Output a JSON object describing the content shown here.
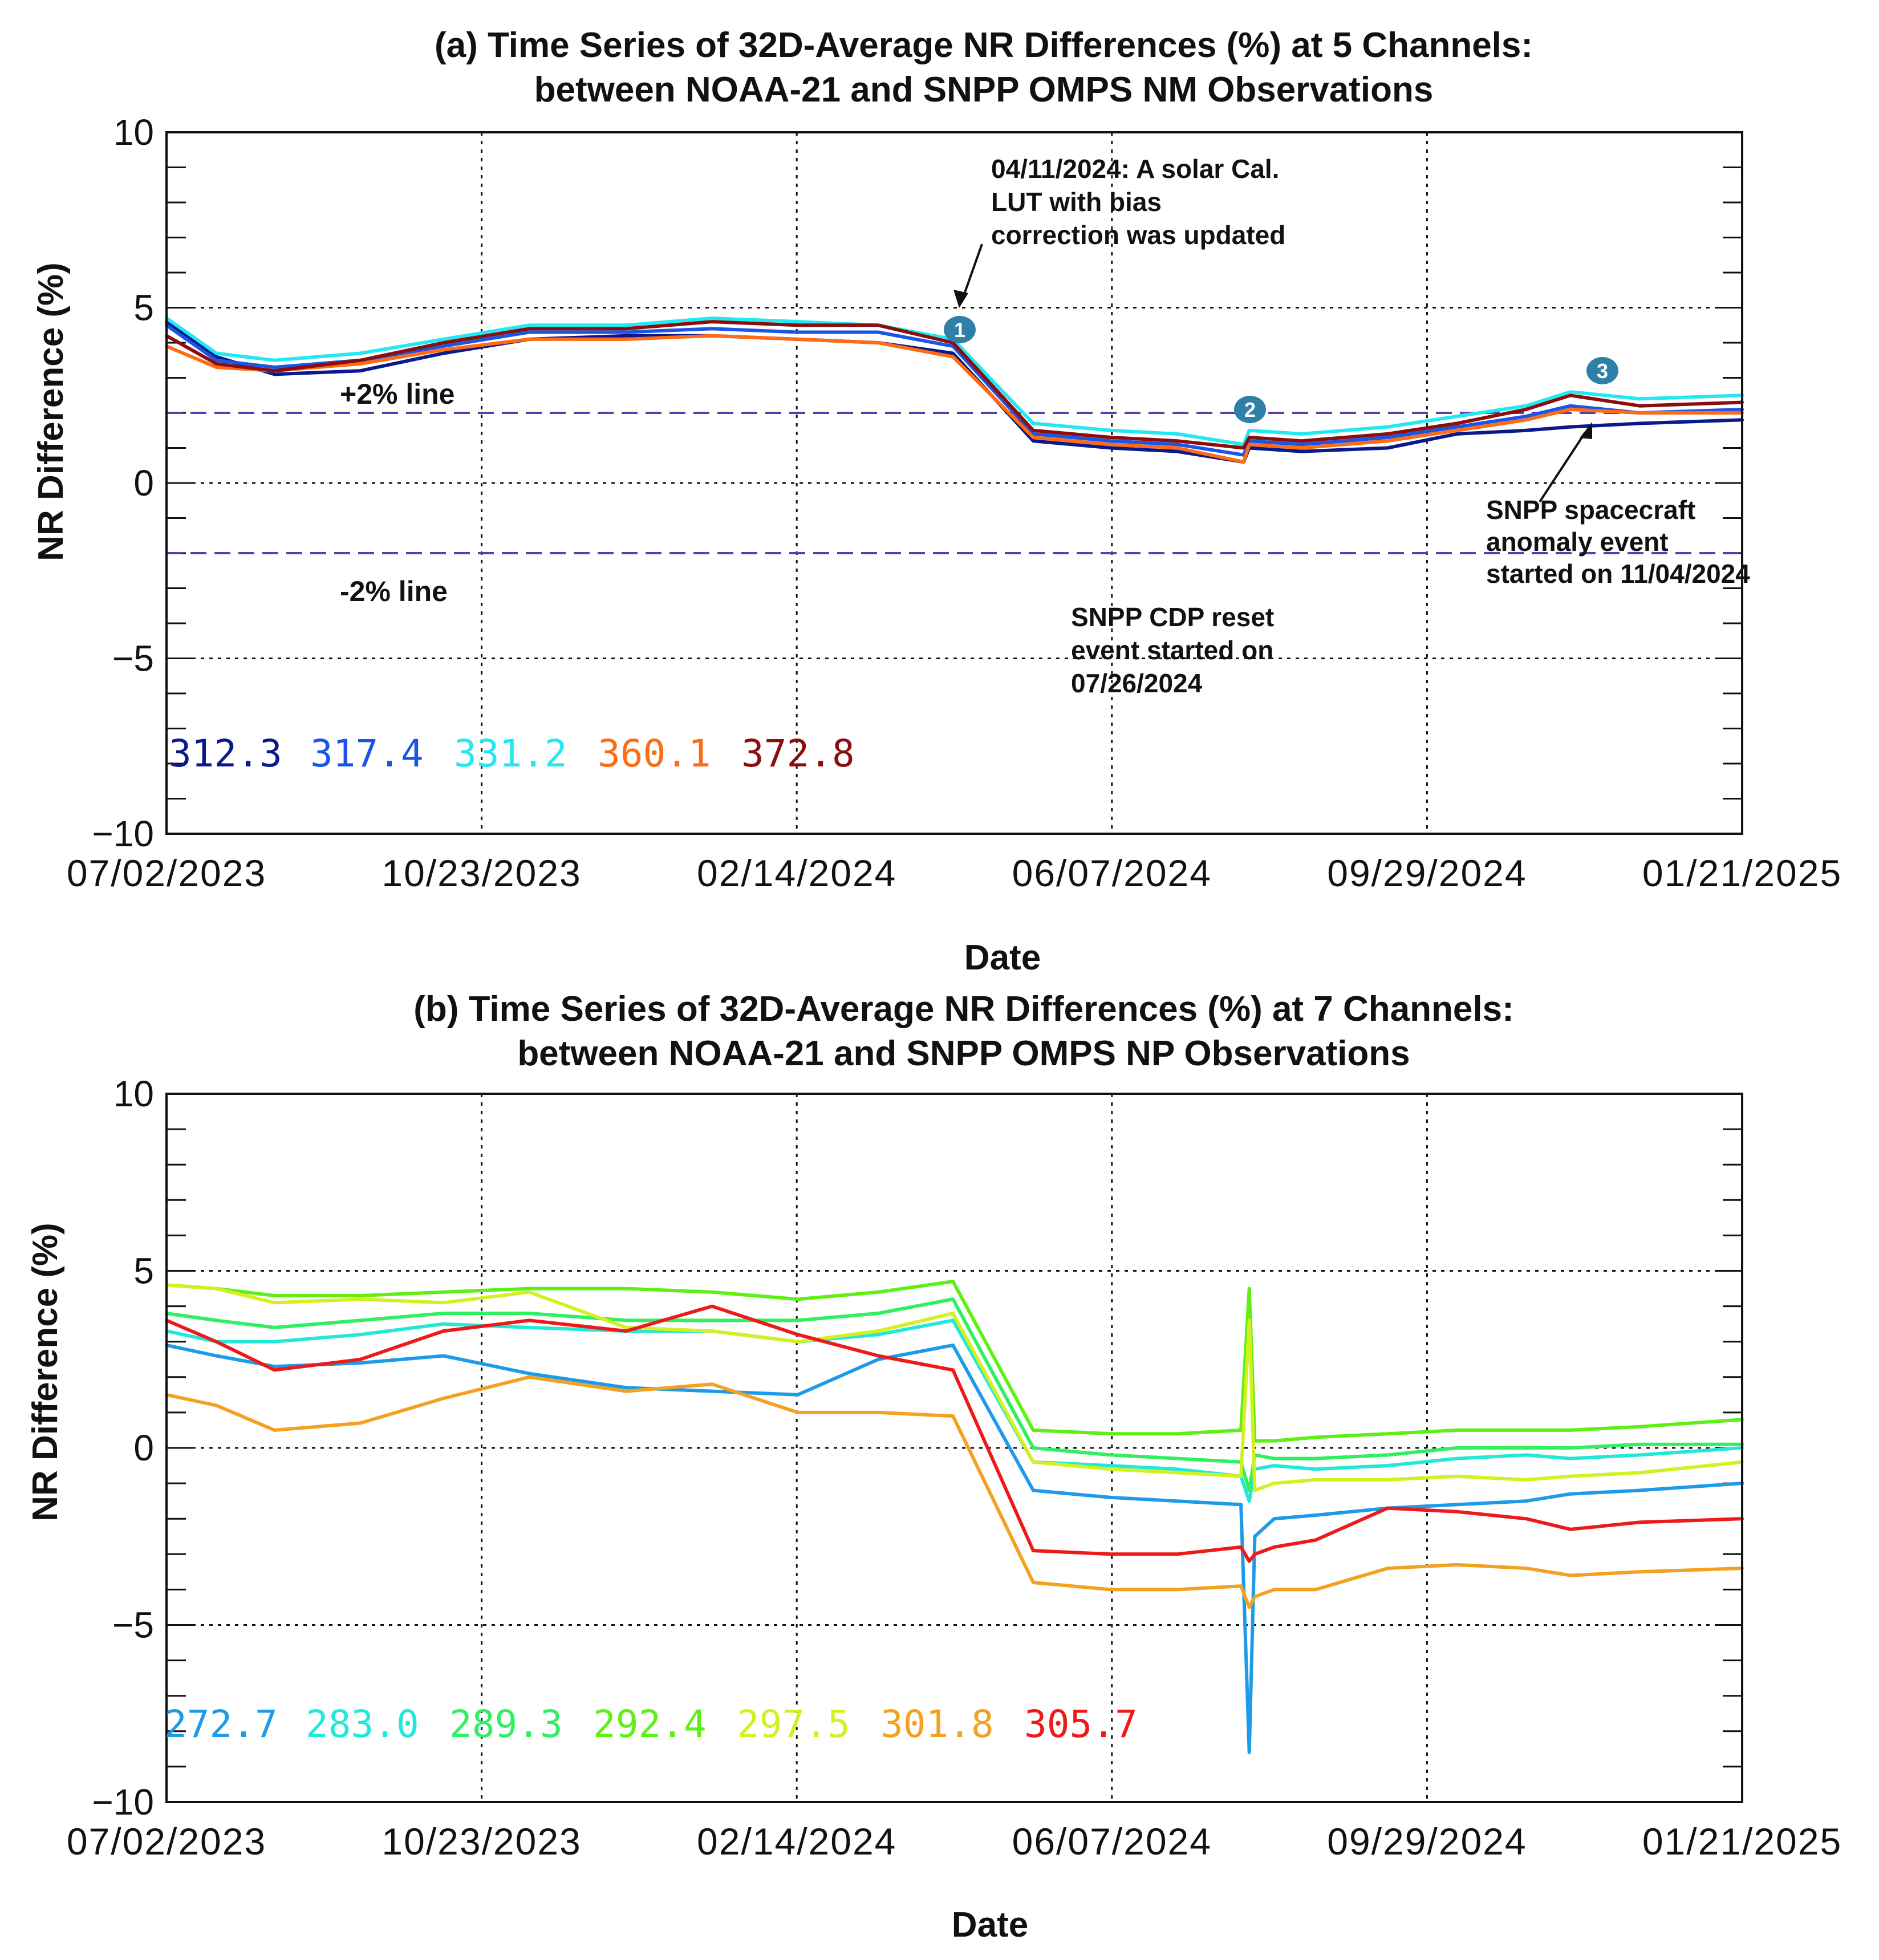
{
  "colors": {
    "nm": [
      "#0a1a8c",
      "#1a55e6",
      "#22e8f0",
      "#ff6a14",
      "#8b0e0e"
    ],
    "np": [
      "#1e9be8",
      "#22e8d8",
      "#30f060",
      "#5ef014",
      "#d4f020",
      "#f4a020",
      "#ee1a1a"
    ],
    "ref_dashed": "#5a3cb4"
  },
  "chart_data": [
    {
      "id": "a",
      "type": "line",
      "title": [
        "(a) Time Series of 32D-Average NR Differences (%) at 5 Channels:",
        "between NOAA-21 and SNPP OMPS NM Observations"
      ],
      "xlabel": "Date",
      "ylabel": "NR Difference (%)",
      "ylim": [
        -10,
        10
      ],
      "xlim": [
        "2023-07-02",
        "2025-01-21"
      ],
      "x_ticks": [
        "07/02/2023",
        "10/23/2023",
        "02/14/2024",
        "06/07/2024",
        "09/29/2024",
        "01/21/2025"
      ],
      "y_ticks": [
        "10",
        "5",
        "0",
        "−5",
        "−10"
      ],
      "grid": true,
      "reference_lines": [
        {
          "y": 2,
          "label": "+2% line"
        },
        {
          "y": -2,
          "label": "-2% line"
        }
      ],
      "annotations": [
        {
          "marker": "1",
          "date": "2024-04-11",
          "text": [
            "04/11/2024: A solar Cal.",
            "LUT with bias",
            "correction was updated"
          ]
        },
        {
          "marker": "2",
          "date": "2024-07-26",
          "text": [
            "SNPP CDP reset",
            "event started on",
            "07/26/2024"
          ]
        },
        {
          "marker": "3",
          "date": "2024-11-04",
          "text": [
            "SNPP spacecraft",
            "anomaly event",
            "started on 11/04/2024"
          ]
        }
      ],
      "x": [
        "2023-07-02",
        "2023-07-20",
        "2023-08-10",
        "2023-09-10",
        "2023-10-10",
        "2023-11-10",
        "2023-12-15",
        "2024-01-15",
        "2024-02-15",
        "2024-03-15",
        "2024-04-11",
        "2024-05-10",
        "2024-06-07",
        "2024-07-01",
        "2024-07-25",
        "2024-07-27",
        "2024-08-15",
        "2024-09-15",
        "2024-10-10",
        "2024-11-04",
        "2024-11-20",
        "2024-12-15",
        "2025-01-21"
      ],
      "series": [
        {
          "name": "312.3",
          "values": [
            4.6,
            3.6,
            3.1,
            3.2,
            3.7,
            4.1,
            4.2,
            4.2,
            4.1,
            4.0,
            3.7,
            1.2,
            1.0,
            0.9,
            0.6,
            1.0,
            0.9,
            1.0,
            1.4,
            1.5,
            1.6,
            1.7,
            1.8
          ]
        },
        {
          "name": "317.4",
          "values": [
            4.5,
            3.5,
            3.3,
            3.5,
            3.9,
            4.3,
            4.3,
            4.4,
            4.3,
            4.3,
            3.9,
            1.4,
            1.2,
            1.1,
            0.8,
            1.2,
            1.1,
            1.3,
            1.6,
            1.9,
            2.2,
            2.0,
            2.1
          ]
        },
        {
          "name": "331.2",
          "values": [
            4.7,
            3.7,
            3.5,
            3.7,
            4.1,
            4.5,
            4.5,
            4.7,
            4.6,
            4.5,
            4.1,
            1.7,
            1.5,
            1.4,
            1.1,
            1.5,
            1.4,
            1.6,
            1.9,
            2.2,
            2.6,
            2.4,
            2.5
          ]
        },
        {
          "name": "360.1",
          "values": [
            3.9,
            3.3,
            3.2,
            3.4,
            3.8,
            4.1,
            4.1,
            4.2,
            4.1,
            4.0,
            3.6,
            1.3,
            1.1,
            1.0,
            0.6,
            1.1,
            1.0,
            1.2,
            1.5,
            1.8,
            2.1,
            2.0,
            2.0
          ]
        },
        {
          "name": "372.8",
          "values": [
            4.2,
            3.4,
            3.2,
            3.5,
            4.0,
            4.4,
            4.4,
            4.6,
            4.5,
            4.5,
            4.0,
            1.5,
            1.3,
            1.2,
            1.0,
            1.3,
            1.2,
            1.4,
            1.7,
            2.1,
            2.5,
            2.2,
            2.3
          ]
        }
      ]
    },
    {
      "id": "b",
      "type": "line",
      "title": [
        "(b) Time Series of 32D-Average NR Differences (%) at 7 Channels:",
        "between NOAA-21 and SNPP OMPS NP Observations"
      ],
      "xlabel": "Date",
      "ylabel": "NR Difference (%)",
      "ylim": [
        -10,
        10
      ],
      "xlim": [
        "2023-07-02",
        "2025-01-21"
      ],
      "x_ticks": [
        "07/02/2023",
        "10/23/2023",
        "02/14/2024",
        "06/07/2024",
        "09/29/2024",
        "01/21/2025"
      ],
      "y_ticks": [
        "10",
        "5",
        "0",
        "−5",
        "−10"
      ],
      "grid": true,
      "x": [
        "2023-07-02",
        "2023-07-20",
        "2023-08-10",
        "2023-09-10",
        "2023-10-10",
        "2023-11-10",
        "2023-12-15",
        "2024-01-15",
        "2024-02-15",
        "2024-03-15",
        "2024-04-11",
        "2024-05-10",
        "2024-06-07",
        "2024-07-01",
        "2024-07-24",
        "2024-07-27",
        "2024-07-29",
        "2024-08-05",
        "2024-08-20",
        "2024-09-15",
        "2024-10-10",
        "2024-11-04",
        "2024-11-20",
        "2024-12-15",
        "2025-01-21"
      ],
      "series": [
        {
          "name": "272.7",
          "values": [
            2.9,
            2.6,
            2.3,
            2.4,
            2.6,
            2.1,
            1.7,
            1.6,
            1.5,
            2.5,
            2.9,
            -1.2,
            -1.4,
            -1.5,
            -1.6,
            -8.6,
            -2.5,
            -2.0,
            -1.9,
            -1.7,
            -1.6,
            -1.5,
            -1.3,
            -1.2,
            -1.0
          ]
        },
        {
          "name": "283.0",
          "values": [
            3.3,
            3.0,
            3.0,
            3.2,
            3.5,
            3.4,
            3.3,
            3.3,
            3.0,
            3.2,
            3.6,
            -0.4,
            -0.5,
            -0.6,
            -0.8,
            -1.5,
            -0.6,
            -0.5,
            -0.6,
            -0.5,
            -0.3,
            -0.2,
            -0.3,
            -0.2,
            0.0
          ]
        },
        {
          "name": "289.3",
          "values": [
            3.8,
            3.6,
            3.4,
            3.6,
            3.8,
            3.8,
            3.6,
            3.6,
            3.6,
            3.8,
            4.2,
            0.0,
            -0.2,
            -0.3,
            -0.4,
            -1.2,
            -0.2,
            -0.3,
            -0.3,
            -0.2,
            0.0,
            0.0,
            0.0,
            0.1,
            0.1
          ]
        },
        {
          "name": "292.4",
          "values": [
            4.6,
            4.5,
            4.3,
            4.3,
            4.4,
            4.5,
            4.5,
            4.4,
            4.2,
            4.4,
            4.7,
            0.5,
            0.4,
            0.4,
            0.5,
            4.5,
            0.2,
            0.2,
            0.3,
            0.4,
            0.5,
            0.5,
            0.5,
            0.6,
            0.8
          ]
        },
        {
          "name": "297.5",
          "values": [
            4.6,
            4.5,
            4.1,
            4.2,
            4.1,
            4.4,
            3.4,
            3.3,
            3.0,
            3.3,
            3.8,
            -0.4,
            -0.6,
            -0.7,
            -0.8,
            3.6,
            -1.2,
            -1.0,
            -0.9,
            -0.9,
            -0.8,
            -0.9,
            -0.8,
            -0.7,
            -0.4
          ]
        },
        {
          "name": "301.8",
          "values": [
            1.5,
            1.2,
            0.5,
            0.7,
            1.4,
            2.0,
            1.6,
            1.8,
            1.0,
            1.0,
            0.9,
            -3.8,
            -4.0,
            -4.0,
            -3.9,
            -4.5,
            -4.2,
            -4.0,
            -4.0,
            -3.4,
            -3.3,
            -3.4,
            -3.6,
            -3.5,
            -3.4
          ]
        },
        {
          "name": "305.7",
          "values": [
            3.6,
            3.0,
            2.2,
            2.5,
            3.3,
            3.6,
            3.3,
            4.0,
            3.2,
            2.6,
            2.2,
            -2.9,
            -3.0,
            -3.0,
            -2.8,
            -3.2,
            -3.0,
            -2.8,
            -2.6,
            -1.7,
            -1.8,
            -2.0,
            -2.3,
            -2.1,
            -2.0
          ]
        }
      ]
    }
  ]
}
